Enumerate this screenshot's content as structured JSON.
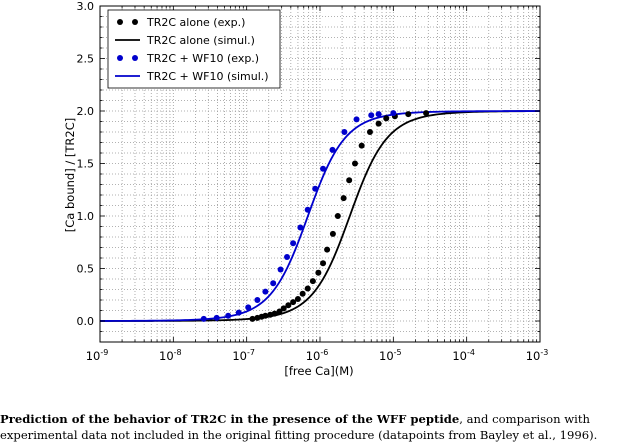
{
  "chart_data": {
    "type": "line",
    "xscale": "log",
    "xlim": [
      1e-09,
      0.001
    ],
    "ylim": [
      -0.2,
      3.0
    ],
    "xlabel": "[free Ca](M)",
    "ylabel": "[Ca bound] / [TR2C]",
    "x_tick_labels": [
      {
        "base": "10",
        "exp": "-9"
      },
      {
        "base": "10",
        "exp": "-8"
      },
      {
        "base": "10",
        "exp": "-7"
      },
      {
        "base": "10",
        "exp": "-6"
      },
      {
        "base": "10",
        "exp": "-5"
      },
      {
        "base": "10",
        "exp": "-4"
      },
      {
        "base": "10",
        "exp": "-3"
      }
    ],
    "y_ticks": [
      "0.0",
      "0.5",
      "1.0",
      "1.5",
      "2.0",
      "2.5",
      "3.0"
    ],
    "grid": true,
    "legend_position": "top-left",
    "series": [
      {
        "name": "TR2C alone (exp.)",
        "kind": "scatter",
        "color": "#000000",
        "x": [
          1.2e-07,
          1.4e-07,
          1.6e-07,
          1.8e-07,
          2.1e-07,
          2.4e-07,
          2.8e-07,
          3.2e-07,
          3.7e-07,
          4.3e-07,
          5e-07,
          5.8e-07,
          6.8e-07,
          8e-07,
          9.5e-07,
          1.1e-06,
          1.25e-06,
          1.5e-06,
          1.75e-06,
          2.1e-06,
          2.5e-06,
          3e-06,
          3.7e-06,
          4.8e-06,
          6.3e-06,
          8e-06,
          1.05e-05,
          1.6e-05,
          2.8e-05
        ],
        "y": [
          0.02,
          0.03,
          0.04,
          0.05,
          0.06,
          0.07,
          0.09,
          0.12,
          0.15,
          0.18,
          0.21,
          0.26,
          0.31,
          0.38,
          0.46,
          0.55,
          0.68,
          0.83,
          1.0,
          1.17,
          1.34,
          1.5,
          1.67,
          1.8,
          1.88,
          1.93,
          1.95,
          1.97,
          1.98
        ]
      },
      {
        "name": "TR2C alone (simul.)",
        "kind": "line",
        "color": "#000000",
        "k1": 6.5e-06,
        "k2": 1e-06,
        "n_curve_points": 161
      },
      {
        "name": "TR2C + WF10 (exp.)",
        "kind": "scatter",
        "color": "#0000cc",
        "x": [
          2.6e-08,
          3.9e-08,
          5.6e-08,
          7.8e-08,
          1.05e-07,
          1.4e-07,
          1.8e-07,
          2.3e-07,
          2.9e-07,
          3.55e-07,
          4.3e-07,
          5.4e-07,
          6.8e-07,
          8.6e-07,
          1.1e-06,
          1.48e-06,
          2.15e-06,
          3.15e-06,
          5e-06,
          6.3e-06,
          1e-05
        ],
        "y": [
          0.02,
          0.03,
          0.05,
          0.08,
          0.13,
          0.2,
          0.28,
          0.36,
          0.49,
          0.61,
          0.74,
          0.89,
          1.06,
          1.26,
          1.45,
          1.63,
          1.8,
          1.92,
          1.96,
          1.97,
          1.98
        ]
      },
      {
        "name": "TR2C + WF10 (simul.)",
        "kind": "line",
        "color": "#0000cc",
        "k1": 1.8e-06,
        "k2": 2.6e-07,
        "n_curve_points": 161
      }
    ]
  },
  "caption": {
    "bold": "Prediction of the behavior of TR2C in the presence of the WFF peptide",
    "line1_rest": ", and comparison with",
    "line2": "experimental data not included in the original fitting procedure (datapoints from Bayley et al., 1996)."
  }
}
